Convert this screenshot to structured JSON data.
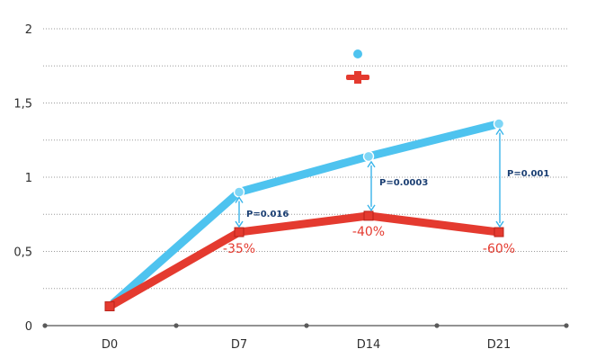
{
  "chart_data": {
    "type": "line",
    "categories": [
      "D0",
      "D7",
      "D14",
      "D21"
    ],
    "ylim": [
      0,
      2
    ],
    "y_ticks": [
      "0",
      "0,5",
      "1",
      "1,5",
      "2"
    ],
    "grid": true,
    "legend_position": "top-center",
    "series": [
      {
        "values": [
          0.13,
          0.9,
          1.14,
          1.36
        ],
        "color": "#4ec3ef",
        "marker": "circle"
      },
      {
        "values": [
          0.13,
          0.63,
          0.74,
          0.63
        ],
        "color": "#e43a2f",
        "marker": "square"
      }
    ],
    "annotations": [
      {
        "category": "D7",
        "p_value": "P=0.016",
        "reduction": "-35%"
      },
      {
        "category": "D14",
        "p_value": "P=0.0003",
        "reduction": "-40%"
      },
      {
        "category": "D21",
        "p_value": "P=0.001",
        "reduction": "-60%"
      }
    ]
  }
}
